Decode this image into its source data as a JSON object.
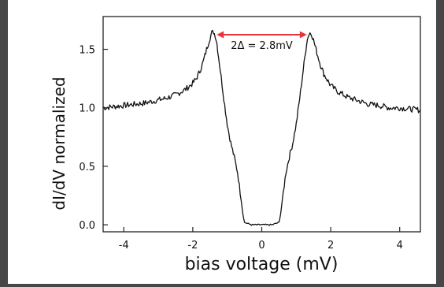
{
  "chart_data": {
    "type": "line",
    "title": "",
    "xlabel": "bias voltage (mV)",
    "ylabel": "dI/dV normalized",
    "xlim": [
      -4.6,
      4.6
    ],
    "ylim": [
      -0.06,
      1.78
    ],
    "x_ticks": [
      -4,
      -2,
      0,
      2,
      4
    ],
    "x_tick_labels": [
      "-4",
      "-2",
      "0",
      "2",
      "4"
    ],
    "y_ticks": [
      0.0,
      0.5,
      1.0,
      1.5
    ],
    "y_tick_labels": [
      "0.0",
      "0.5",
      "1.0",
      "1.5"
    ],
    "grid": false,
    "annotation": {
      "text": "2Δ = 2.8mV",
      "x_from": -1.4,
      "x_to": 1.4,
      "y": 1.65,
      "color": "#e8333a"
    },
    "series": [
      {
        "color": "#111111",
        "x": [
          -4.6,
          -4.3,
          -4.0,
          -3.7,
          -3.4,
          -3.1,
          -2.8,
          -2.5,
          -2.2,
          -2.0,
          -1.9,
          -1.8,
          -1.7,
          -1.6,
          -1.5,
          -1.45,
          -1.4,
          -1.35,
          -1.3,
          -1.2,
          -1.1,
          -1.0,
          -0.9,
          -0.8,
          -0.7,
          -0.6,
          -0.55,
          -0.5,
          -0.3,
          0.0,
          0.3,
          0.5,
          0.55,
          0.6,
          0.7,
          0.8,
          0.9,
          1.0,
          1.1,
          1.2,
          1.3,
          1.35,
          1.4,
          1.45,
          1.5,
          1.6,
          1.7,
          1.8,
          1.9,
          2.0,
          2.2,
          2.5,
          2.8,
          3.1,
          3.4,
          3.7,
          4.0,
          4.3,
          4.6
        ],
        "y": [
          1.0,
          1.01,
          1.02,
          1.03,
          1.04,
          1.06,
          1.08,
          1.11,
          1.16,
          1.21,
          1.25,
          1.31,
          1.39,
          1.5,
          1.6,
          1.64,
          1.65,
          1.62,
          1.55,
          1.32,
          1.08,
          0.86,
          0.7,
          0.58,
          0.45,
          0.22,
          0.1,
          0.02,
          0.0,
          0.0,
          0.0,
          0.02,
          0.1,
          0.22,
          0.45,
          0.58,
          0.7,
          0.86,
          1.08,
          1.32,
          1.55,
          1.62,
          1.64,
          1.63,
          1.58,
          1.47,
          1.37,
          1.29,
          1.24,
          1.19,
          1.14,
          1.09,
          1.06,
          1.03,
          1.02,
          1.0,
          1.0,
          0.99,
          0.98
        ]
      }
    ]
  }
}
